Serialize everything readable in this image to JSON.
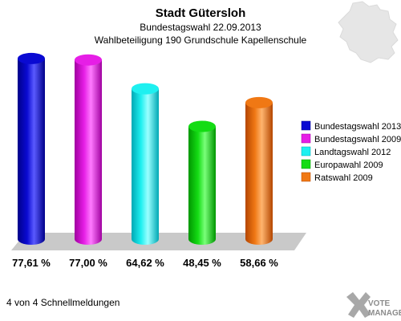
{
  "header": {
    "title": "Stadt Gütersloh",
    "subtitle1": "Bundestagswahl 22.09.2013",
    "subtitle2": "Wahlbeteiligung 190 Grundschule Kapellenschule"
  },
  "footer": {
    "note": "4 von 4 Schnellmeldungen"
  },
  "logo": {
    "line1": "VOTE",
    "line2": "MANAGER"
  },
  "chart_data": {
    "type": "bar",
    "title": "Stadt Gütersloh",
    "ylim": [
      0,
      100
    ],
    "grid": false,
    "legend_position": "right",
    "series": [
      {
        "name": "Bundestagswahl 2013",
        "value": 77.61,
        "label": "77,61 %",
        "color": "#0a0ad2",
        "dark": "#00008a",
        "light": "#5a5aff"
      },
      {
        "name": "Bundestagswahl 2009",
        "value": 77.0,
        "label": "77,00 %",
        "color": "#e61ee6",
        "dark": "#a000a0",
        "light": "#ff7aff"
      },
      {
        "name": "Landtagswahl 2012",
        "value": 64.62,
        "label": "64,62 %",
        "color": "#1ef0f0",
        "dark": "#00a8b4",
        "light": "#9affff"
      },
      {
        "name": "Europawahl 2009",
        "value": 48.45,
        "label": "48,45 %",
        "color": "#14dc14",
        "dark": "#009600",
        "light": "#7aff7a"
      },
      {
        "name": "Ratswahl 2009",
        "value": 58.66,
        "label": "58,66 %",
        "color": "#f07814",
        "dark": "#b44600",
        "light": "#ffb46e"
      }
    ]
  }
}
